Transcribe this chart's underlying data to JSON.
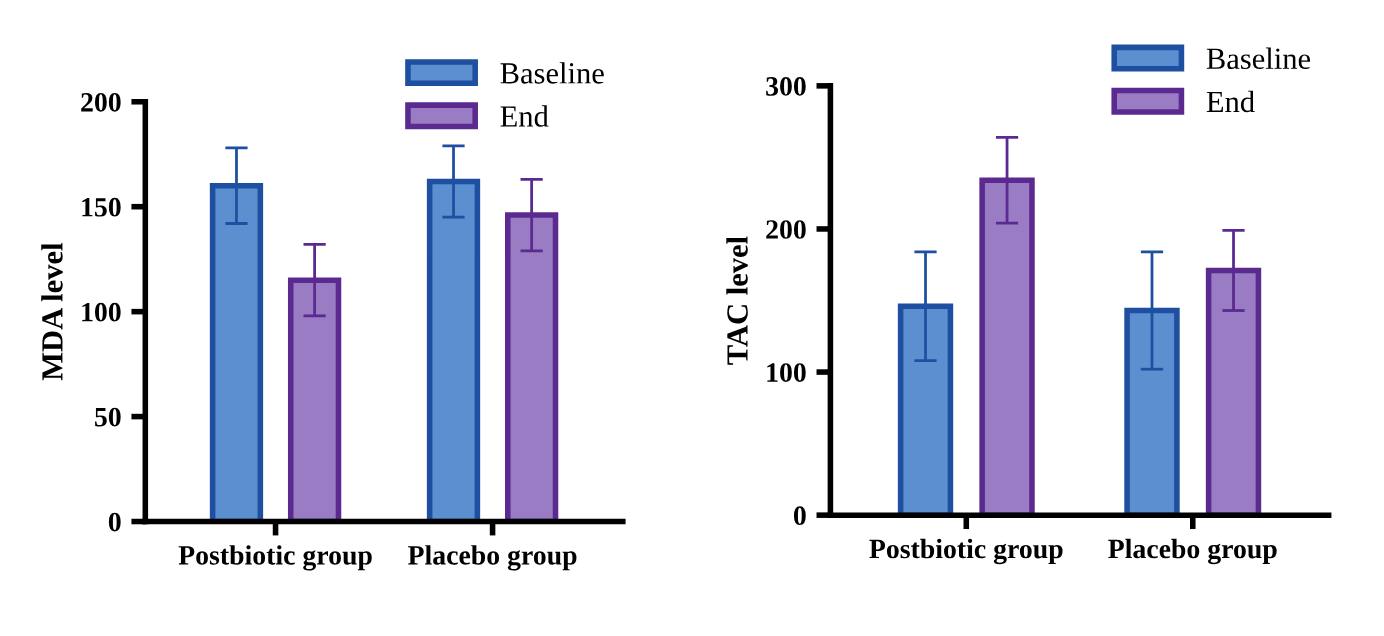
{
  "chart_data": [
    {
      "type": "bar",
      "ylabel": "MDA level",
      "categories": [
        "Postbiotic group",
        "Placebo group"
      ],
      "ylim": [
        0,
        200
      ],
      "yticks": [
        0,
        50,
        100,
        150,
        200
      ],
      "legend": "top right",
      "grid": false,
      "series": [
        {
          "name": "Baseline",
          "color": "#5b8fd0",
          "values": [
            160,
            162
          ],
          "errors": [
            18,
            17
          ]
        },
        {
          "name": "End",
          "color": "#9a7cc4",
          "values": [
            115,
            146
          ],
          "errors": [
            17,
            17
          ]
        }
      ]
    },
    {
      "type": "bar",
      "ylabel": "TAC level",
      "categories": [
        "Postbiotic group",
        "Placebo group"
      ],
      "ylim": [
        0,
        300
      ],
      "yticks": [
        0,
        100,
        200,
        300
      ],
      "legend": "top right",
      "grid": false,
      "series": [
        {
          "name": "Baseline",
          "color": "#5b8fd0",
          "values": [
            146,
            143
          ],
          "errors": [
            38,
            41
          ]
        },
        {
          "name": "End",
          "color": "#9a7cc4",
          "values": [
            234,
            171
          ],
          "errors": [
            30,
            28
          ]
        }
      ]
    }
  ]
}
